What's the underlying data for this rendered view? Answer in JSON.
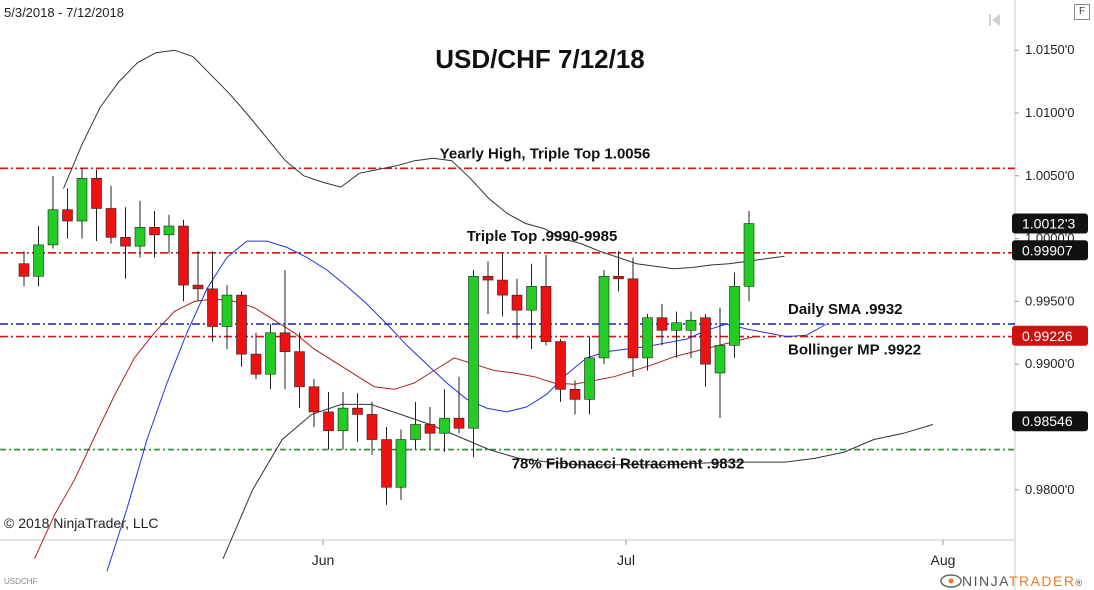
{
  "header": {
    "date_range": "5/3/2018 - 7/12/2018",
    "copyright": "© 2018 NinjaTrader, LLC",
    "symbol_tag": "USDCHF",
    "f_button": "F"
  },
  "logo": {
    "prefix": "NINJA",
    "suffix": "TRADER",
    "mark": "®"
  },
  "colors": {
    "up_candle": "#22cc22",
    "down_candle": "#ee1111",
    "red_dash": "#dd1111",
    "blue_dash": "#1122cc",
    "green_dash": "#2e8b2e",
    "bollinger": "#333333",
    "sma_blue": "#2233dd",
    "mp_red": "#aa2222",
    "logo_accent": "#ea7a2b"
  },
  "chart_data": {
    "type": "candlestick",
    "title": "USD/CHF 7/12/18",
    "x_ticks": [
      "Jun",
      "Jul",
      "Aug"
    ],
    "y_ticks": [
      "1.0150'0",
      "1.0100'0",
      "1.0050'0",
      "1.0000'0",
      "0.9950'0",
      "0.9900'0",
      "0.9850'0",
      "0.9800'0"
    ],
    "y_tick_values": [
      1.015,
      1.01,
      1.005,
      1.0,
      0.995,
      0.99,
      0.985,
      0.98
    ],
    "ylim": [
      0.976,
      1.019
    ],
    "price_labels": [
      {
        "text": "1.0012'3",
        "value": 1.0012,
        "style": "dark"
      },
      {
        "text": "0.99907",
        "value": 0.99907,
        "style": "dark"
      },
      {
        "text": "0.99226",
        "value": 0.99226,
        "style": "red"
      },
      {
        "text": "0.98546",
        "value": 0.98546,
        "style": "dark"
      }
    ],
    "horizontal_lines": [
      {
        "label": "Yearly High, Triple Top 1.0056",
        "value": 1.0056,
        "color": "red"
      },
      {
        "label": "Triple Top .9990-9985",
        "value": 0.99887,
        "color": "red"
      },
      {
        "label": "Daily SMA .9932",
        "value": 0.9932,
        "color": "blue"
      },
      {
        "label": "Bollinger MP .9922",
        "value": 0.9922,
        "color": "red"
      },
      {
        "label": "78% Fibonacci Retracment .9832",
        "value": 0.9832,
        "color": "green"
      }
    ],
    "ohlc": [
      {
        "date": "5/3",
        "o": 0.998,
        "h": 0.999,
        "l": 0.9962,
        "c": 0.997
      },
      {
        "date": "5/4",
        "o": 0.997,
        "h": 1.001,
        "l": 0.9962,
        "c": 0.9995
      },
      {
        "date": "5/7",
        "o": 0.9995,
        "h": 1.005,
        "l": 0.9992,
        "c": 1.0023
      },
      {
        "date": "5/8",
        "o": 1.0023,
        "h": 1.004,
        "l": 1.0,
        "c": 1.0014
      },
      {
        "date": "5/9",
        "o": 1.0014,
        "h": 1.0056,
        "l": 1.0,
        "c": 1.0048
      },
      {
        "date": "5/10",
        "o": 1.0048,
        "h": 1.0055,
        "l": 0.9998,
        "c": 1.0024
      },
      {
        "date": "5/11",
        "o": 1.0024,
        "h": 1.0042,
        "l": 0.9996,
        "c": 1.0001
      },
      {
        "date": "5/14",
        "o": 1.0001,
        "h": 1.0025,
        "l": 0.9968,
        "c": 0.9994
      },
      {
        "date": "5/15",
        "o": 0.9994,
        "h": 1.003,
        "l": 0.9985,
        "c": 1.0009
      },
      {
        "date": "5/16",
        "o": 1.0009,
        "h": 1.0022,
        "l": 0.9985,
        "c": 1.0003
      },
      {
        "date": "5/17",
        "o": 1.0003,
        "h": 1.0019,
        "l": 0.9988,
        "c": 1.001
      },
      {
        "date": "5/18",
        "o": 1.001,
        "h": 1.0015,
        "l": 0.995,
        "c": 0.9963
      },
      {
        "date": "5/21",
        "o": 0.9963,
        "h": 0.999,
        "l": 0.995,
        "c": 0.996
      },
      {
        "date": "5/22",
        "o": 0.996,
        "h": 0.999,
        "l": 0.9918,
        "c": 0.993
      },
      {
        "date": "5/23",
        "o": 0.993,
        "h": 0.9963,
        "l": 0.9912,
        "c": 0.9955
      },
      {
        "date": "5/24",
        "o": 0.9955,
        "h": 0.9958,
        "l": 0.9898,
        "c": 0.9908
      },
      {
        "date": "5/25",
        "o": 0.9908,
        "h": 0.9925,
        "l": 0.9888,
        "c": 0.9892
      },
      {
        "date": "5/28",
        "o": 0.9892,
        "h": 0.9932,
        "l": 0.988,
        "c": 0.9925
      },
      {
        "date": "5/29",
        "o": 0.9925,
        "h": 0.9975,
        "l": 0.988,
        "c": 0.991
      },
      {
        "date": "5/30",
        "o": 0.991,
        "h": 0.9925,
        "l": 0.9865,
        "c": 0.9882
      },
      {
        "date": "5/31",
        "o": 0.9882,
        "h": 0.9888,
        "l": 0.985,
        "c": 0.9862
      },
      {
        "date": "6/1",
        "o": 0.9862,
        "h": 0.9878,
        "l": 0.9832,
        "c": 0.9847
      },
      {
        "date": "6/4",
        "o": 0.9847,
        "h": 0.9878,
        "l": 0.9832,
        "c": 0.9865
      },
      {
        "date": "6/5",
        "o": 0.9865,
        "h": 0.9877,
        "l": 0.9838,
        "c": 0.986
      },
      {
        "date": "6/6",
        "o": 0.986,
        "h": 0.987,
        "l": 0.9828,
        "c": 0.984
      },
      {
        "date": "6/7",
        "o": 0.984,
        "h": 0.985,
        "l": 0.9788,
        "c": 0.9802
      },
      {
        "date": "6/8",
        "o": 0.9802,
        "h": 0.9848,
        "l": 0.9792,
        "c": 0.984
      },
      {
        "date": "6/11",
        "o": 0.984,
        "h": 0.987,
        "l": 0.9832,
        "c": 0.9852
      },
      {
        "date": "6/12",
        "o": 0.9852,
        "h": 0.9866,
        "l": 0.9832,
        "c": 0.9845
      },
      {
        "date": "6/13",
        "o": 0.9845,
        "h": 0.988,
        "l": 0.983,
        "c": 0.9857
      },
      {
        "date": "6/14",
        "o": 0.9857,
        "h": 0.989,
        "l": 0.9845,
        "c": 0.9849
      },
      {
        "date": "6/15",
        "o": 0.9849,
        "h": 0.9975,
        "l": 0.9826,
        "c": 0.997
      },
      {
        "date": "6/18",
        "o": 0.997,
        "h": 0.9982,
        "l": 0.994,
        "c": 0.9967
      },
      {
        "date": "6/19",
        "o": 0.9967,
        "h": 0.9988,
        "l": 0.9938,
        "c": 0.9955
      },
      {
        "date": "6/20",
        "o": 0.9955,
        "h": 0.9968,
        "l": 0.992,
        "c": 0.9943
      },
      {
        "date": "6/21",
        "o": 0.9943,
        "h": 0.998,
        "l": 0.9912,
        "c": 0.9962
      },
      {
        "date": "6/22",
        "o": 0.9962,
        "h": 0.9987,
        "l": 0.9915,
        "c": 0.9918
      },
      {
        "date": "6/25",
        "o": 0.9918,
        "h": 0.992,
        "l": 0.987,
        "c": 0.988
      },
      {
        "date": "6/26",
        "o": 0.988,
        "h": 0.9887,
        "l": 0.986,
        "c": 0.9872
      },
      {
        "date": "6/27",
        "o": 0.9872,
        "h": 0.9922,
        "l": 0.986,
        "c": 0.9905
      },
      {
        "date": "6/28",
        "o": 0.9905,
        "h": 0.9975,
        "l": 0.99,
        "c": 0.997
      },
      {
        "date": "6/29",
        "o": 0.997,
        "h": 0.999,
        "l": 0.9958,
        "c": 0.9968
      },
      {
        "date": "7/2",
        "o": 0.9968,
        "h": 0.9985,
        "l": 0.989,
        "c": 0.9905
      },
      {
        "date": "7/3",
        "o": 0.9905,
        "h": 0.994,
        "l": 0.9895,
        "c": 0.9937
      },
      {
        "date": "7/4",
        "o": 0.9937,
        "h": 0.9948,
        "l": 0.9915,
        "c": 0.9927
      },
      {
        "date": "7/5",
        "o": 0.9927,
        "h": 0.9942,
        "l": 0.9905,
        "c": 0.9933
      },
      {
        "date": "7/6",
        "o": 0.9927,
        "h": 0.9942,
        "l": 0.9905,
        "c": 0.9935
      },
      {
        "date": "7/9",
        "o": 0.9937,
        "h": 0.994,
        "l": 0.9882,
        "c": 0.99
      },
      {
        "date": "7/10",
        "o": 0.9893,
        "h": 0.9945,
        "l": 0.9857,
        "c": 0.9915
      },
      {
        "date": "7/11",
        "o": 0.9915,
        "h": 0.9973,
        "l": 0.9905,
        "c": 0.9962
      },
      {
        "date": "7/12",
        "o": 0.9962,
        "h": 1.0022,
        "l": 0.995,
        "c": 1.0012
      }
    ],
    "bollinger_upper": [
      1.004,
      1.0075,
      1.0105,
      1.0125,
      1.014,
      1.0148,
      1.015,
      1.0145,
      1.013,
      1.0115,
      1.0098,
      1.008,
      1.0062,
      1.005,
      1.0045,
      1.0041,
      1.0052,
      1.0055,
      1.0058,
      1.0062,
      1.0064,
      1.0062,
      1.0048,
      1.0032,
      1.002,
      1.0012,
      1.0008,
      1.0,
      0.9996,
      0.999,
      0.9985,
      0.998,
      0.9978,
      0.9976,
      0.9977,
      0.9979,
      0.998,
      0.9982,
      0.9984,
      0.9986
    ],
    "bollinger_lower": [
      0.9745,
      0.98,
      0.984,
      0.986,
      0.9868,
      0.9868,
      0.986,
      0.9852,
      0.9842,
      0.9832,
      0.9825,
      0.9822,
      0.982,
      0.982,
      0.982,
      0.982,
      0.9821,
      0.9822,
      0.9822,
      0.9822,
      0.9825,
      0.983,
      0.984,
      0.9845,
      0.9852
    ],
    "bollinger_mid": [
      0.9745,
      0.978,
      0.9808,
      0.9842,
      0.9875,
      0.9905,
      0.9925,
      0.9942,
      0.995,
      0.9952,
      0.995,
      0.9945,
      0.9935,
      0.9925,
      0.9912,
      0.9902,
      0.9892,
      0.9882,
      0.988,
      0.9885,
      0.9895,
      0.9905,
      0.99,
      0.9895,
      0.9893,
      0.989,
      0.9885,
      0.9884,
      0.9887,
      0.989,
      0.9895,
      0.99,
      0.9906,
      0.991,
      0.9914,
      0.9918,
      0.9922
    ],
    "sma": [
      0.9735,
      0.9785,
      0.984,
      0.9885,
      0.9925,
      0.996,
      0.9985,
      0.9998,
      0.9998,
      0.9993,
      0.9985,
      0.9975,
      0.9962,
      0.9948,
      0.9932,
      0.9915,
      0.99,
      0.9885,
      0.9872,
      0.9865,
      0.9862,
      0.9866,
      0.9876,
      0.9892,
      0.9905,
      0.991,
      0.9912,
      0.9914,
      0.9917,
      0.992,
      0.9927,
      0.9932,
      0.9928,
      0.9925,
      0.9922,
      0.9923,
      0.9932
    ]
  }
}
